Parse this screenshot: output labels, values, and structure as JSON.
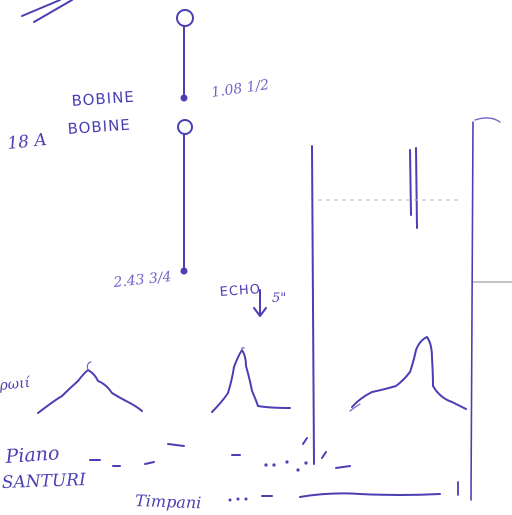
{
  "labels": {
    "bobine_top": "BOBINE",
    "bobine_bottom": "BOBINE",
    "bobine_code": "18 A",
    "time_top": "1.08 1/2",
    "time_bottom": "2.43 3/4",
    "echo": "ECHO",
    "echo_duration": "5\"",
    "row_1": "ρωιί",
    "row_2": "Piano",
    "row_3": "SANTURI",
    "row_4": "Timpani"
  }
}
